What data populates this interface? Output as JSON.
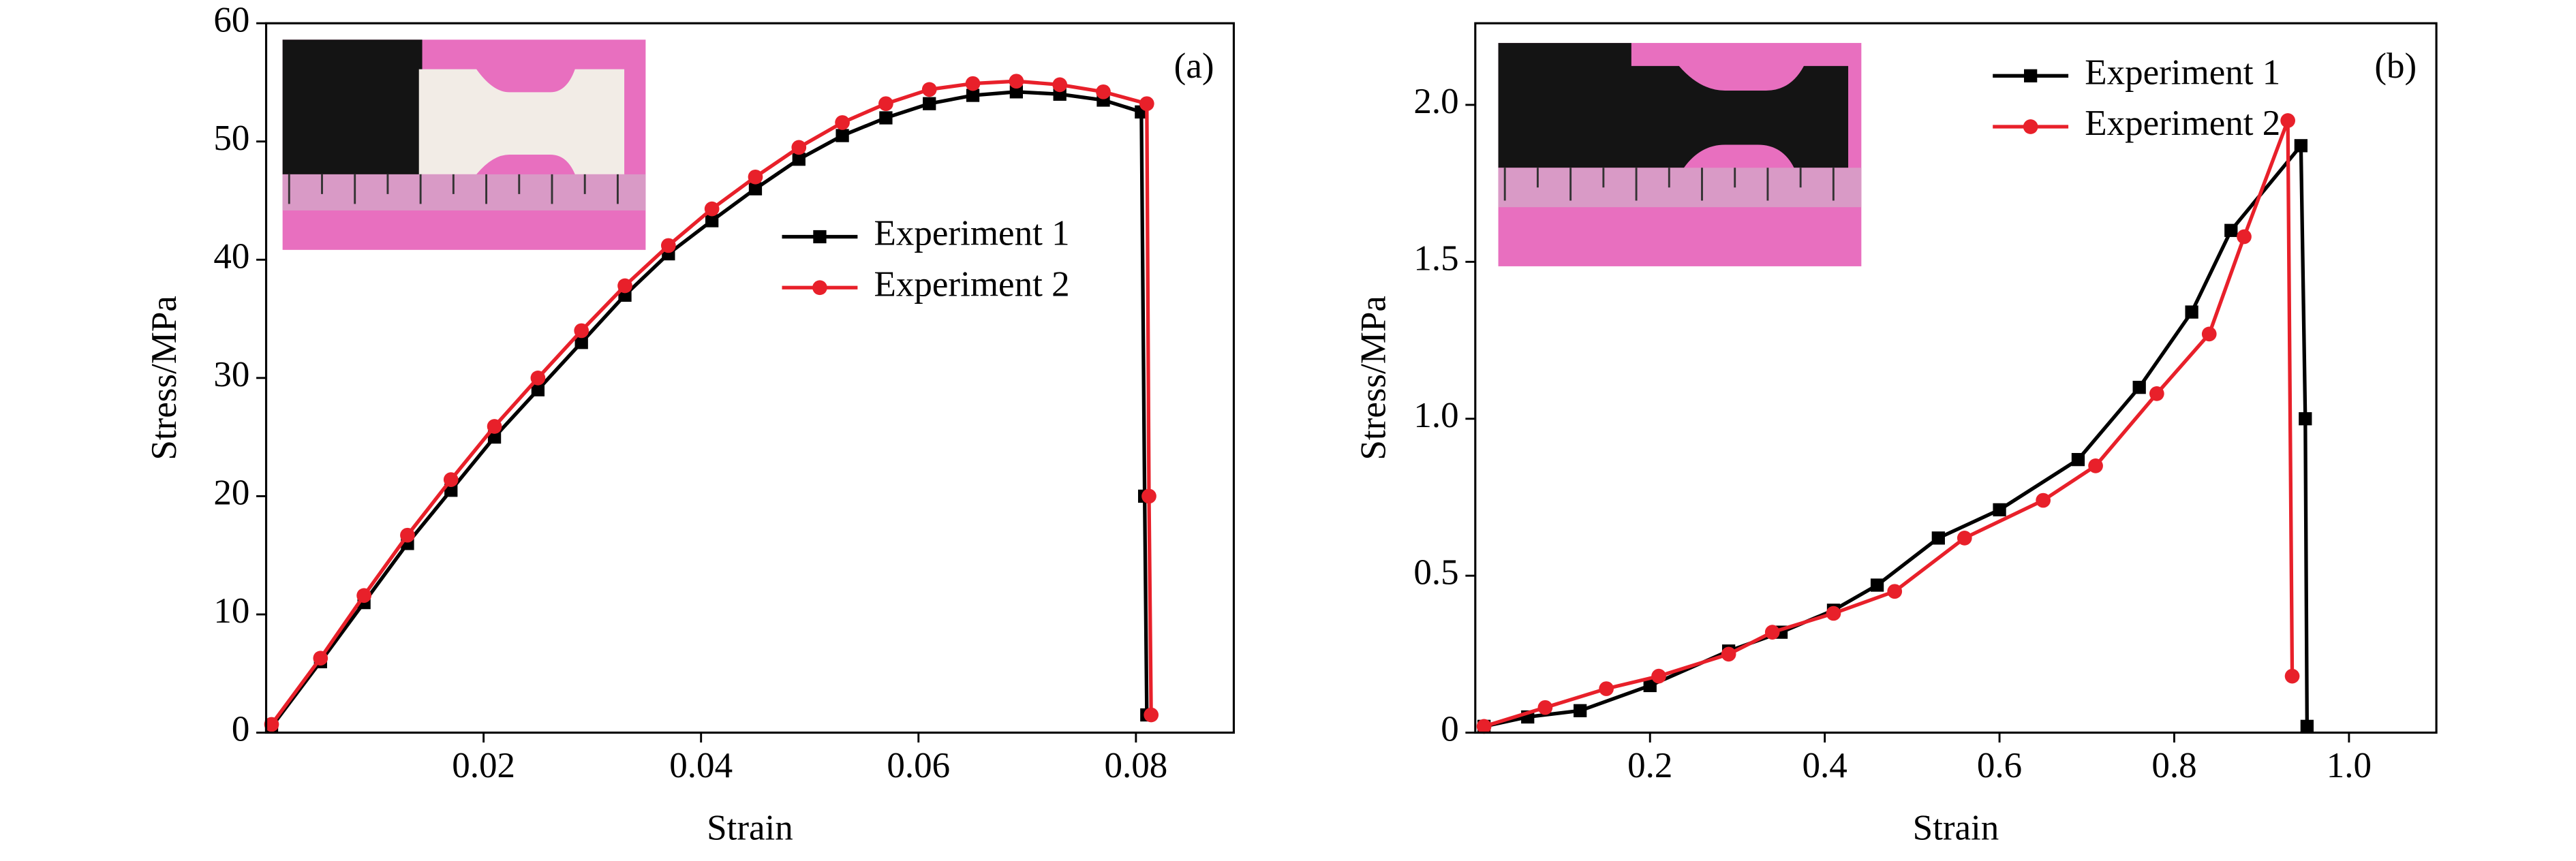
{
  "chart_data": [
    {
      "type": "line",
      "panel_label": "(a)",
      "xlabel": "Strain",
      "ylabel": "Stress/MPa",
      "xlim": [
        0,
        0.089
      ],
      "xticks": [
        0.02,
        0.04,
        0.06,
        0.08
      ],
      "ylim": [
        0,
        60
      ],
      "yticks": [
        0,
        10,
        20,
        30,
        40,
        50,
        60
      ],
      "legend": "upper right",
      "series": [
        {
          "name": "Experiment 1",
          "color": "#000000",
          "marker": "square",
          "x": [
            0.0005,
            0.005,
            0.009,
            0.013,
            0.017,
            0.021,
            0.025,
            0.029,
            0.033,
            0.037,
            0.041,
            0.045,
            0.049,
            0.053,
            0.057,
            0.061,
            0.065,
            0.069,
            0.073,
            0.077,
            0.0805,
            0.0808,
            0.081
          ],
          "values": [
            0.5,
            6,
            11,
            16,
            20.5,
            25,
            29,
            33,
            37,
            40.5,
            43.3,
            46,
            48.5,
            50.5,
            52,
            53.2,
            53.9,
            54.2,
            54,
            53.5,
            52.5,
            20,
            1.5
          ]
        },
        {
          "name": "Experiment 2",
          "color": "#e8202a",
          "marker": "circle",
          "x": [
            0.0005,
            0.005,
            0.009,
            0.013,
            0.017,
            0.021,
            0.025,
            0.029,
            0.033,
            0.037,
            0.041,
            0.045,
            0.049,
            0.053,
            0.057,
            0.061,
            0.065,
            0.069,
            0.073,
            0.077,
            0.081,
            0.0812,
            0.0814
          ],
          "values": [
            0.7,
            6.3,
            11.6,
            16.7,
            21.4,
            25.9,
            30,
            34,
            37.8,
            41.2,
            44.3,
            47,
            49.5,
            51.6,
            53.2,
            54.4,
            54.9,
            55.1,
            54.8,
            54.2,
            53.2,
            20,
            1.5
          ]
        }
      ]
    },
    {
      "type": "line",
      "panel_label": "(b)",
      "xlabel": "Strain",
      "ylabel": "Stress/MPa",
      "xlim": [
        0,
        1.1
      ],
      "xticks": [
        0.2,
        0.4,
        0.6,
        0.8,
        {
          "value": 1.0,
          "label": "1.0"
        }
      ],
      "ylim": [
        0,
        2.26
      ],
      "yticks": [
        0,
        0.5,
        {
          "value": 1.0,
          "label": "1.0"
        },
        1.5,
        {
          "value": 2.0,
          "label": "2.0"
        }
      ],
      "legend": "upper center",
      "series": [
        {
          "name": "Experiment 1",
          "color": "#000000",
          "marker": "square",
          "x": [
            0.01,
            0.06,
            0.12,
            0.2,
            0.29,
            0.35,
            0.41,
            0.46,
            0.53,
            0.6,
            0.69,
            0.76,
            0.82,
            0.865,
            0.945,
            0.95,
            0.952
          ],
          "values": [
            0.02,
            0.05,
            0.07,
            0.15,
            0.26,
            0.32,
            0.39,
            0.47,
            0.62,
            0.71,
            0.87,
            1.1,
            1.34,
            1.6,
            1.87,
            1.0,
            0.02
          ]
        },
        {
          "name": "Experiment 2",
          "color": "#e8202a",
          "marker": "circle",
          "x": [
            0.01,
            0.08,
            0.15,
            0.21,
            0.29,
            0.34,
            0.41,
            0.48,
            0.56,
            0.65,
            0.71,
            0.78,
            0.84,
            0.88,
            0.93,
            0.935
          ],
          "values": [
            0.02,
            0.08,
            0.14,
            0.18,
            0.25,
            0.32,
            0.38,
            0.45,
            0.62,
            0.74,
            0.85,
            1.08,
            1.27,
            1.58,
            1.95,
            0.18
          ]
        }
      ]
    }
  ]
}
